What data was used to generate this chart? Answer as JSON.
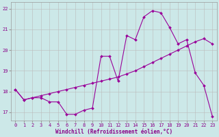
{
  "xlabel": "Windchill (Refroidissement éolien,°C)",
  "x": [
    0,
    1,
    2,
    3,
    4,
    5,
    6,
    7,
    8,
    9,
    10,
    11,
    12,
    13,
    14,
    15,
    16,
    17,
    18,
    19,
    20,
    21,
    22,
    23
  ],
  "curve1": [
    18.1,
    17.6,
    17.7,
    17.7,
    17.5,
    17.5,
    16.9,
    16.9,
    17.1,
    17.2,
    19.7,
    19.7,
    18.5,
    20.7,
    20.5,
    21.6,
    21.9,
    21.8,
    21.1,
    20.3,
    20.5,
    18.9,
    18.3,
    16.8
  ],
  "curve2": [
    18.1,
    17.6,
    17.7,
    17.8,
    17.9,
    18.0,
    18.1,
    18.2,
    18.3,
    18.4,
    18.5,
    18.6,
    18.7,
    18.85,
    19.0,
    19.2,
    19.4,
    19.6,
    19.8,
    20.0,
    20.2,
    20.4,
    20.55,
    20.3
  ],
  "line_color": "#990099",
  "bg_color": "#cce8e8",
  "grid_color": "#bbbbbb",
  "ylim": [
    16.6,
    22.3
  ],
  "yticks": [
    17,
    18,
    19,
    20,
    21,
    22
  ],
  "xticks": [
    0,
    1,
    2,
    3,
    4,
    5,
    6,
    7,
    8,
    9,
    10,
    11,
    12,
    13,
    14,
    15,
    16,
    17,
    18,
    19,
    20,
    21,
    22,
    23
  ],
  "tick_color": "#880088",
  "label_color": "#880088"
}
